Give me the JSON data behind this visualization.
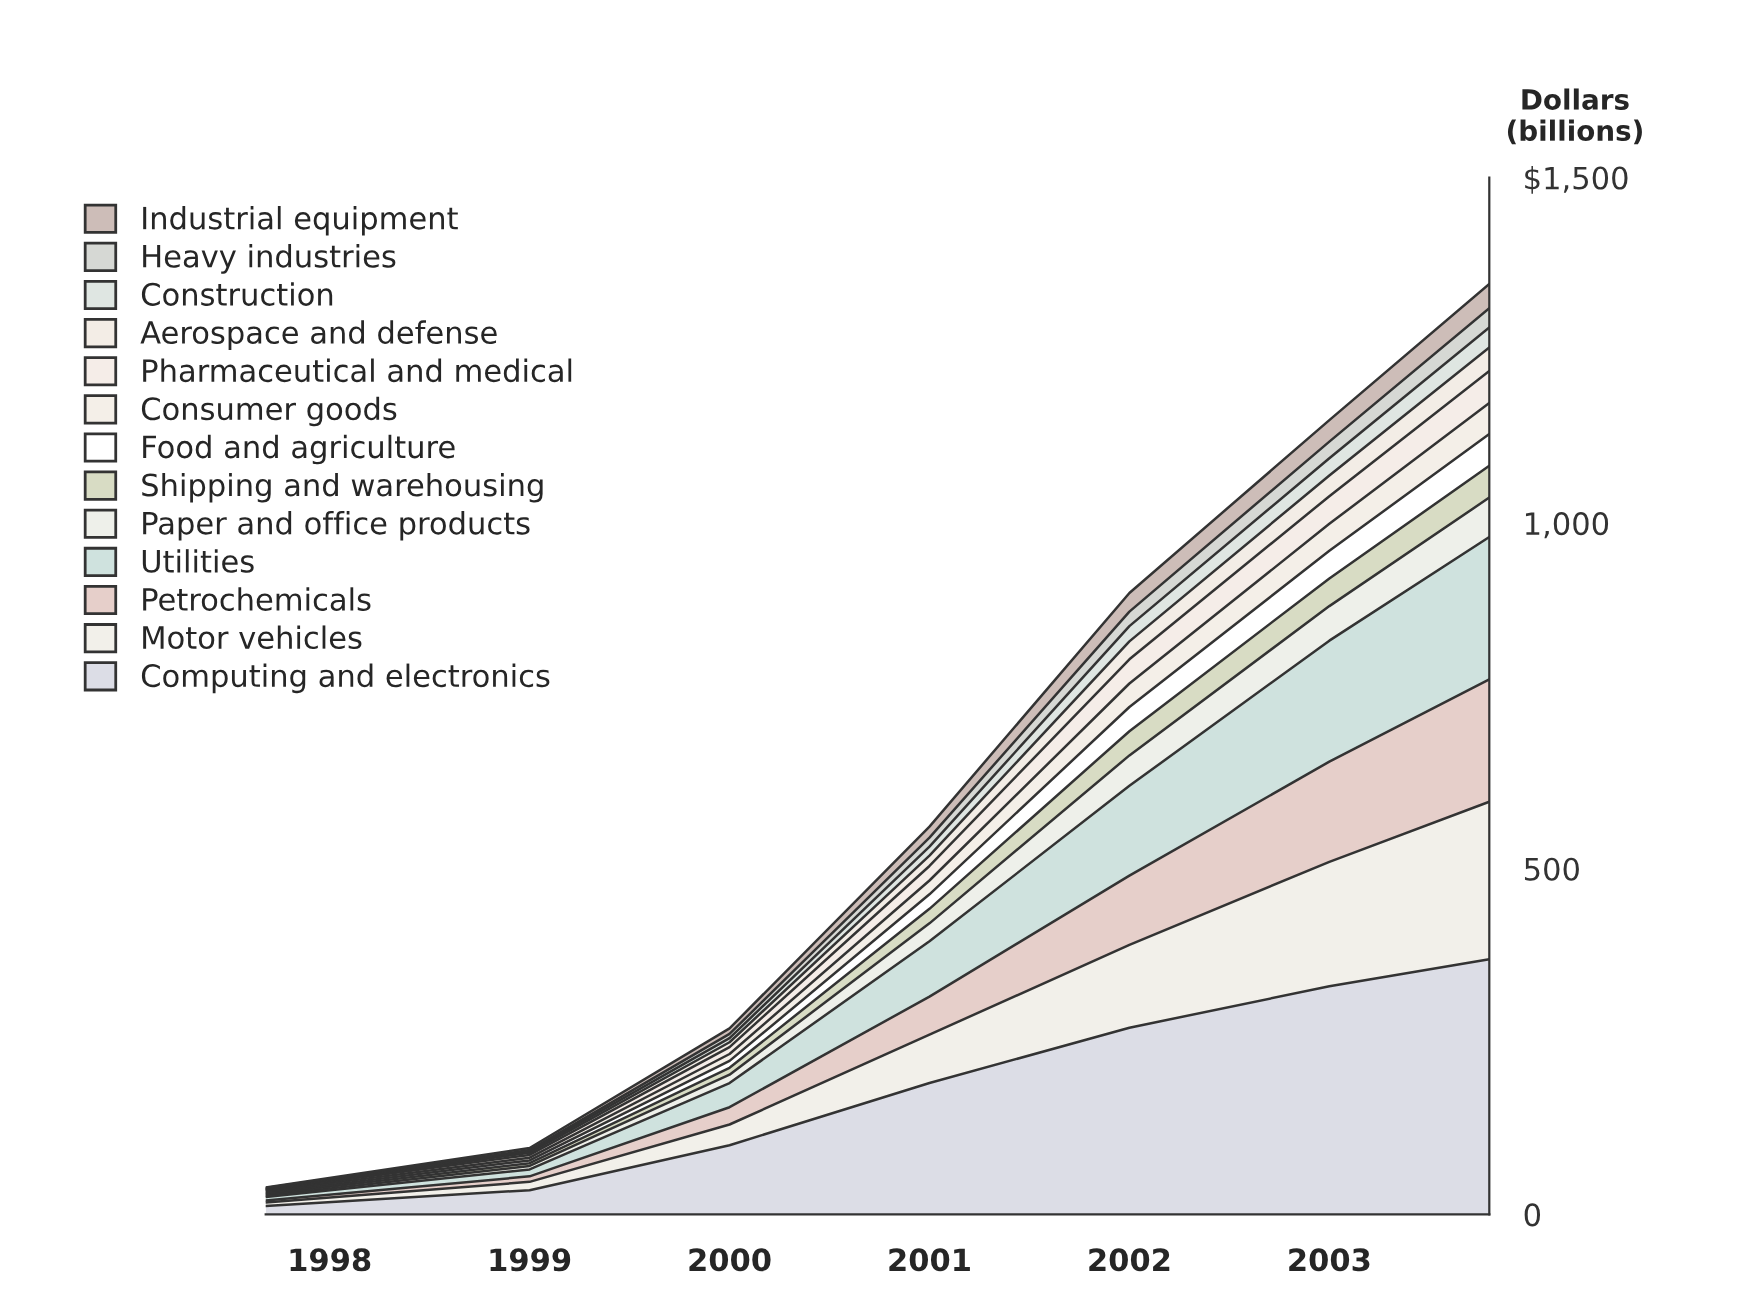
{
  "chart_data": {
    "type": "area",
    "stacked": true,
    "ylabel": "Dollars\n(billions)",
    "x": [
      1997.68,
      1999,
      2000,
      2001,
      2002,
      2003,
      2003.8
    ],
    "xlim": [
      1997.68,
      2003.8
    ],
    "xticks": [
      1998,
      1999,
      2000,
      2001,
      2002,
      2003
    ],
    "ylim": [
      0,
      1500
    ],
    "yticks": [
      0,
      500,
      {
        "value": 1000,
        "label": "1,000"
      },
      {
        "value": 1500,
        "label": "$1,500"
      }
    ],
    "grid": false,
    "legend": "top left",
    "series": [
      {
        "name": "Computing and electronics",
        "color": "#dcdde6",
        "values": [
          12,
          35,
          100,
          190,
          270,
          330,
          369
        ]
      },
      {
        "name": "Motor vehicles",
        "color": "#f2f0ea",
        "values": [
          5,
          12,
          30,
          70,
          120,
          180,
          228
        ]
      },
      {
        "name": "Petrochemicals",
        "color": "#e6cfca",
        "values": [
          3,
          8,
          25,
          55,
          100,
          145,
          177
        ]
      },
      {
        "name": "Utilities",
        "color": "#cfe2de",
        "values": [
          5,
          10,
          35,
          80,
          130,
          175,
          206
        ]
      },
      {
        "name": "Paper and office products",
        "color": "#eef0ea",
        "values": [
          2,
          5,
          12,
          26,
          44,
          50,
          57
        ]
      },
      {
        "name": "Shipping and warehousing",
        "color": "#d8dcc4",
        "values": [
          2,
          4,
          10,
          21,
          35,
          40,
          46
        ]
      },
      {
        "name": "Food and agriculture",
        "color": "#ffffff",
        "values": [
          2,
          4,
          10,
          21,
          35,
          40,
          46
        ]
      },
      {
        "name": "Consumer goods",
        "color": "#f4efe8",
        "values": [
          2,
          4,
          10,
          20,
          34,
          39,
          45
        ]
      },
      {
        "name": "Pharmaceutical and medical",
        "color": "#f5ede8",
        "values": [
          2,
          4,
          10,
          21,
          35,
          40,
          46
        ]
      },
      {
        "name": "Aerospace and defense",
        "color": "#f3ede6",
        "values": [
          1,
          3,
          7,
          15,
          26,
          30,
          34
        ]
      },
      {
        "name": "Construction",
        "color": "#dfe6e2",
        "values": [
          1,
          2,
          6,
          13,
          22,
          25,
          29
        ]
      },
      {
        "name": "Heavy industries",
        "color": "#d6d8d4",
        "values": [
          1,
          2,
          6,
          13,
          21,
          24,
          28
        ]
      },
      {
        "name": "Industrial equipment",
        "color": "#cdbdb8",
        "values": [
          1,
          3,
          8,
          16,
          27,
          31,
          35
        ]
      }
    ]
  }
}
